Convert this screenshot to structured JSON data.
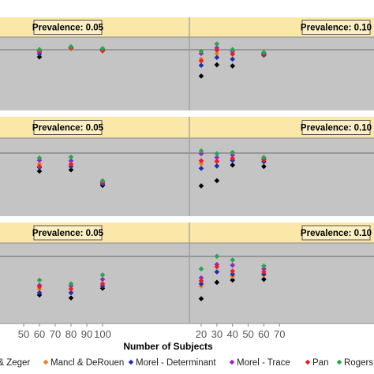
{
  "chart_data": {
    "type": "scatter",
    "xlabel": "Number of Subjects",
    "panels": [
      {
        "left_label": "Prevalence: 0.05",
        "right_label": "Prevalence: 0.10",
        "left_points": [
          {
            "x": 60,
            "values": [
              0.29,
              0.37,
              0.34,
              0.38,
              0.4,
              0.42
            ]
          },
          {
            "x": 80,
            "values": [
              0.44,
              0.44,
              0.46,
              0.47,
              0.45,
              0.47
            ]
          },
          {
            "x": 100,
            "values": [
              0.4,
              0.43,
              0.41,
              0.42,
              0.4,
              0.44
            ]
          }
        ],
        "right_points": [
          {
            "x": 20,
            "values": [
              -0.05,
              0.25,
              0.14,
              0.35,
              0.22,
              0.39
            ]
          },
          {
            "x": 30,
            "values": [
              0.15,
              0.35,
              0.28,
              0.45,
              0.41,
              0.52
            ]
          },
          {
            "x": 40,
            "values": [
              0.13,
              0.36,
              0.25,
              0.39,
              0.34,
              0.42
            ]
          },
          {
            "x": 60,
            "values": [
              0.32,
              0.33,
              0.34,
              0.35,
              0.36,
              0.37
            ]
          }
        ]
      },
      {
        "left_label": "Prevalence: 0.05",
        "right_label": "Prevalence: 0.10",
        "left_points": [
          {
            "x": 60,
            "values": [
              0.35,
              0.5,
              0.43,
              0.58,
              0.45,
              0.63
            ]
          },
          {
            "x": 80,
            "values": [
              0.38,
              0.45,
              0.45,
              0.57,
              0.5,
              0.65
            ]
          },
          {
            "x": 100,
            "values": [
              0.05,
              0.09,
              0.08,
              0.1,
              0.12,
              0.15
            ]
          }
        ],
        "right_points": [
          {
            "x": 20,
            "values": [
              0.04,
              0.51,
              0.41,
              0.72,
              0.57,
              0.78
            ]
          },
          {
            "x": 30,
            "values": [
              0.15,
              0.55,
              0.46,
              0.64,
              0.56,
              0.72
            ]
          },
          {
            "x": 40,
            "values": [
              0.48,
              0.58,
              0.58,
              0.69,
              0.62,
              0.75
            ]
          },
          {
            "x": 60,
            "values": [
              0.45,
              0.58,
              0.55,
              0.61,
              0.59,
              0.64
            ]
          }
        ]
      },
      {
        "left_label": "Prevalence: 0.05",
        "right_label": "Prevalence: 0.10",
        "left_points": [
          {
            "x": 60,
            "values": [
              0.25,
              0.33,
              0.28,
              0.38,
              0.36,
              0.45
            ]
          },
          {
            "x": 80,
            "values": [
              0.21,
              0.28,
              0.28,
              0.37,
              0.33,
              0.4
            ]
          },
          {
            "x": 100,
            "values": [
              0.34,
              0.37,
              0.37,
              0.46,
              0.4,
              0.52
            ]
          }
        ],
        "right_points": [
          {
            "x": 20,
            "values": [
              0.2,
              0.37,
              0.4,
              0.48,
              0.44,
              0.6
            ]
          },
          {
            "x": 30,
            "values": [
              0.42,
              0.56,
              0.56,
              0.66,
              0.63,
              0.77
            ]
          },
          {
            "x": 40,
            "values": [
              0.45,
              0.5,
              0.53,
              0.65,
              0.57,
              0.72
            ]
          },
          {
            "x": 60,
            "values": [
              0.46,
              0.52,
              0.53,
              0.6,
              0.56,
              0.64
            ]
          }
        ]
      }
    ],
    "x_ticks_bottom": [
      "50",
      "60",
      "70",
      "80",
      "90",
      "100",
      "20",
      "30",
      "40",
      "50",
      "60",
      "70"
    ],
    "legend": [
      {
        "label": "Liang & Zeger",
        "color": "#000000"
      },
      {
        "label": "Mancl & DeRouen",
        "color": "#f07f1b"
      },
      {
        "label": "Morel - Determinant",
        "color": "#1c2fb0"
      },
      {
        "label": "Morel - Trace",
        "color": "#9a23c9"
      },
      {
        "label": "Pan",
        "color": "#ee1c25"
      },
      {
        "label": "Rogers & Stone",
        "color": "#23a84a"
      }
    ]
  },
  "colors": {
    "plot_bg": "#c4c4c4",
    "strip_bg": "#fbe7a8",
    "label_box_bg": "#fbefc4",
    "grid_line": "#6a6a6a"
  }
}
